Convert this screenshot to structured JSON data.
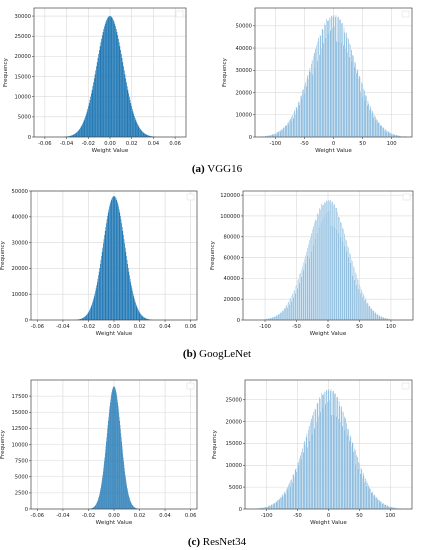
{
  "captions": [
    {
      "letter": "(a)",
      "text": " VGG16"
    },
    {
      "letter": "(b)",
      "text": " GoogLeNet"
    },
    {
      "letter": "(c)",
      "text": " ResNet34"
    }
  ],
  "colors": {
    "left_fill": "#1f77b4",
    "right_fill": "#5b9fd0",
    "right_line": "#ffffff",
    "grid": "#d9d9d9"
  },
  "chart_data": [
    {
      "type": "bar",
      "panel": "a-left",
      "xlabel": "Weight Value",
      "ylabel": "Frequency",
      "xlim": [
        -0.07,
        0.07
      ],
      "ylim": [
        0,
        32000
      ],
      "xticks": [
        -0.06,
        -0.04,
        -0.02,
        0.0,
        0.02,
        0.04,
        0.06
      ],
      "xtick_labels": [
        "-0.06",
        "-0.04",
        "-0.02",
        "0.00",
        "0.02",
        "0.04",
        "0.06"
      ],
      "yticks": [
        0,
        5000,
        10000,
        15000,
        20000,
        25000,
        30000
      ],
      "ytick_labels": [
        "0",
        "5000",
        "10000",
        "15000",
        "20000",
        "25000",
        "30000"
      ],
      "distribution": {
        "mean": 0.0,
        "std": 0.012,
        "peak": 30000
      },
      "grid": true,
      "legend": "top-right"
    },
    {
      "type": "bar",
      "panel": "a-right",
      "xlabel": "Weight Value",
      "ylabel": "Frequency",
      "xlim": [
        -135,
        135
      ],
      "ylim": [
        0,
        58000
      ],
      "xticks": [
        -100,
        -50,
        0,
        50,
        100
      ],
      "xtick_labels": [
        "-100",
        "-50",
        "0",
        "50",
        "100"
      ],
      "yticks": [
        0,
        10000,
        20000,
        30000,
        40000,
        50000
      ],
      "ytick_labels": [
        "0",
        "10000",
        "20000",
        "30000",
        "40000",
        "50000"
      ],
      "distribution": {
        "mean": 0,
        "std": 38,
        "peak": 56000
      },
      "grid": true,
      "legend": "top-right"
    },
    {
      "type": "bar",
      "panel": "b-left",
      "xlabel": "Weight Value",
      "ylabel": "Frequency",
      "xlim": [
        -0.065,
        0.065
      ],
      "ylim": [
        0,
        50000
      ],
      "xticks": [
        -0.06,
        -0.04,
        -0.02,
        0.0,
        0.02,
        0.04,
        0.06
      ],
      "xtick_labels": [
        "-0.06",
        "-0.04",
        "-0.02",
        "0.00",
        "0.02",
        "0.04",
        "0.06"
      ],
      "yticks": [
        0,
        10000,
        20000,
        30000,
        40000,
        50000
      ],
      "ytick_labels": [
        "0",
        "10000",
        "20000",
        "30000",
        "40000",
        "50000"
      ],
      "distribution": {
        "mean": 0.0,
        "std": 0.0085,
        "peak": 48000
      },
      "grid": true,
      "legend": "top-right"
    },
    {
      "type": "bar",
      "panel": "b-right",
      "xlabel": "Weight Value",
      "ylabel": "Frequency",
      "xlim": [
        -135,
        135
      ],
      "ylim": [
        0,
        124000
      ],
      "xticks": [
        -100,
        -50,
        0,
        50,
        100
      ],
      "xtick_labels": [
        "-100",
        "-50",
        "0",
        "50",
        "100"
      ],
      "yticks": [
        0,
        20000,
        40000,
        60000,
        80000,
        100000,
        120000
      ],
      "ytick_labels": [
        "0",
        "20000",
        "40000",
        "60000",
        "80000",
        "100000",
        "120000"
      ],
      "distribution": {
        "mean": 0,
        "std": 32,
        "peak": 118000
      },
      "grid": true,
      "legend": "top-right"
    },
    {
      "type": "bar",
      "panel": "c-left",
      "xlabel": "Weight Value",
      "ylabel": "Frequency",
      "xlim": [
        -0.065,
        0.065
      ],
      "ylim": [
        0,
        20000
      ],
      "xticks": [
        -0.06,
        -0.04,
        -0.02,
        0.0,
        0.02,
        0.04,
        0.06
      ],
      "xtick_labels": [
        "-0.06",
        "-0.04",
        "-0.02",
        "0.00",
        "0.02",
        "0.04",
        "0.06"
      ],
      "yticks": [
        0,
        2500,
        5000,
        7500,
        10000,
        12500,
        15000,
        17500
      ],
      "ytick_labels": [
        "0",
        "2500",
        "5000",
        "7500",
        "10000",
        "12500",
        "15000",
        "17500"
      ],
      "distribution": {
        "mean": 0.0,
        "std": 0.0055,
        "peak": 19000
      },
      "grid": true,
      "legend": "top-right"
    },
    {
      "type": "bar",
      "panel": "c-right",
      "xlabel": "Weight Value",
      "ylabel": "Frequency",
      "xlim": [
        -135,
        135
      ],
      "ylim": [
        0,
        29500
      ],
      "xticks": [
        -100,
        -50,
        0,
        50,
        100
      ],
      "xtick_labels": [
        "-100",
        "-50",
        "0",
        "50",
        "100"
      ],
      "yticks": [
        0,
        5000,
        10000,
        15000,
        20000,
        25000
      ],
      "ytick_labels": [
        "0",
        "5000",
        "10000",
        "15000",
        "20000",
        "25000"
      ],
      "distribution": {
        "mean": 0,
        "std": 36,
        "peak": 28000
      },
      "grid": true,
      "legend": "top-right"
    }
  ]
}
